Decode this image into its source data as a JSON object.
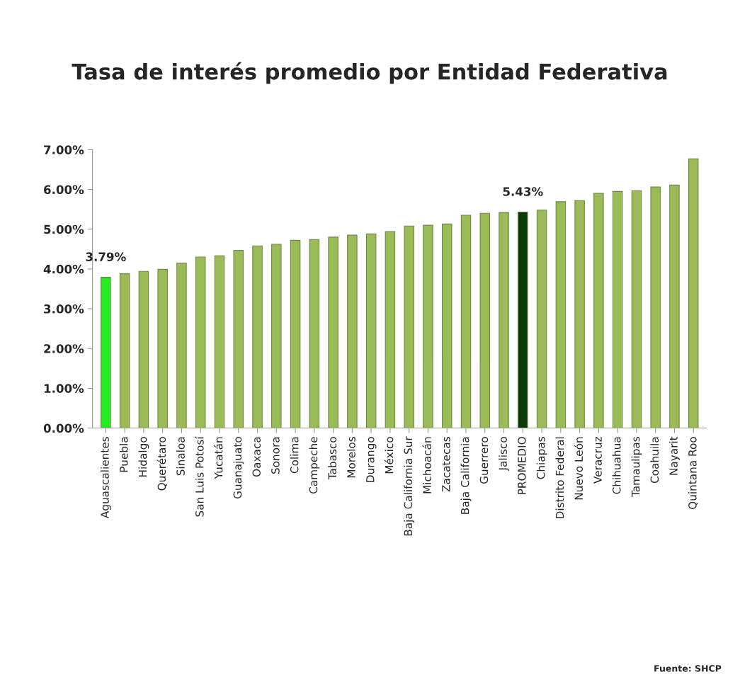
{
  "chart_data": {
    "type": "bar",
    "title": "Tasa de interés promedio por Entidad Federativa",
    "categories": [
      "Aguascalientes",
      "Puebla",
      "Hidalgo",
      "Querétaro",
      "Sinaloa",
      "San Luis Potosí",
      "Yucatán",
      "Guanajuato",
      "Oaxaca",
      "Sonora",
      "Colima",
      "Campeche",
      "Tabasco",
      "Morelos",
      "Durango",
      "México",
      "Baja California Sur",
      "Michoacán",
      "Zacatecas",
      "Baja California",
      "Guerrero",
      "Jalisco",
      "PROMEDIO",
      "Chiapas",
      "Distrito Federal",
      "Nuevo León",
      "Veracruz",
      "Chihuahua",
      "Tamaulipas",
      "Coahuila",
      "Nayarit",
      "Quintana Roo"
    ],
    "values": [
      3.79,
      3.88,
      3.94,
      3.99,
      4.15,
      4.3,
      4.33,
      4.47,
      4.58,
      4.62,
      4.72,
      4.74,
      4.8,
      4.85,
      4.88,
      4.94,
      5.08,
      5.1,
      5.13,
      5.35,
      5.4,
      5.42,
      5.43,
      5.48,
      5.69,
      5.72,
      5.9,
      5.95,
      5.97,
      6.06,
      6.11,
      6.77
    ],
    "colors": [
      "#22ee22",
      "#9bbb59",
      "#9bbb59",
      "#9bbb59",
      "#9bbb59",
      "#9bbb59",
      "#9bbb59",
      "#9bbb59",
      "#9bbb59",
      "#9bbb59",
      "#9bbb59",
      "#9bbb59",
      "#9bbb59",
      "#9bbb59",
      "#9bbb59",
      "#9bbb59",
      "#9bbb59",
      "#9bbb59",
      "#9bbb59",
      "#9bbb59",
      "#9bbb59",
      "#9bbb59",
      "#0b3a0b",
      "#9bbb59",
      "#9bbb59",
      "#9bbb59",
      "#9bbb59",
      "#9bbb59",
      "#9bbb59",
      "#9bbb59",
      "#9bbb59",
      "#9bbb59"
    ],
    "value_labels": [
      "3.79%",
      null,
      null,
      null,
      null,
      null,
      null,
      null,
      null,
      null,
      null,
      null,
      null,
      null,
      null,
      null,
      null,
      null,
      null,
      null,
      null,
      null,
      "5.43%",
      null,
      null,
      null,
      null,
      null,
      null,
      null,
      null,
      null
    ],
    "ylim": [
      0,
      7
    ],
    "yticks": [
      {
        "value": 0,
        "label": "0.00%"
      },
      {
        "value": 1,
        "label": "1.00%"
      },
      {
        "value": 2,
        "label": "2.00%"
      },
      {
        "value": 3,
        "label": "3.00%"
      },
      {
        "value": 4,
        "label": "4.00%"
      },
      {
        "value": 5,
        "label": "5.00%"
      },
      {
        "value": 6,
        "label": "6.00%"
      },
      {
        "value": 7,
        "label": "7.00%"
      }
    ],
    "grid": false,
    "annotations": [
      "Fuente: SHCP"
    ]
  }
}
